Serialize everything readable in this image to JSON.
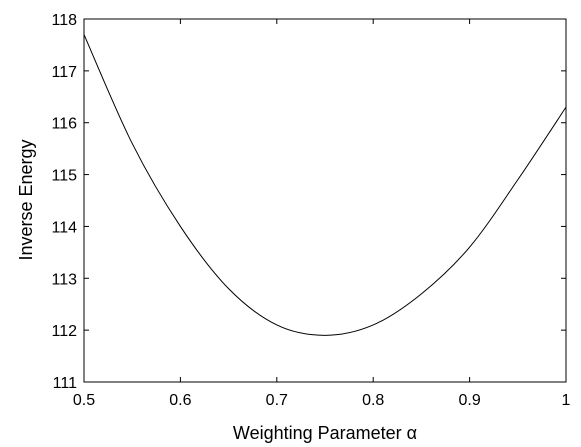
{
  "chart_data": {
    "type": "line",
    "title": "",
    "xlabel": "Weighting Parameter α",
    "ylabel": "Inverse Energy",
    "xlim": [
      0.5,
      1.0
    ],
    "ylim": [
      111,
      118
    ],
    "xticks": [
      "0.5",
      "0.6",
      "0.7",
      "0.8",
      "0.9",
      "1"
    ],
    "yticks": [
      "111",
      "112",
      "113",
      "114",
      "115",
      "116",
      "117",
      "118"
    ],
    "grid": false,
    "legend": "none",
    "series": [
      {
        "color": "#000000",
        "x": [
          0.5,
          0.55,
          0.6,
          0.65,
          0.7,
          0.75,
          0.8,
          0.85,
          0.9,
          0.95,
          1.0
        ],
        "y": [
          117.7,
          115.6,
          114.0,
          112.8,
          112.1,
          111.9,
          112.1,
          112.7,
          113.6,
          114.9,
          116.3
        ]
      }
    ]
  }
}
